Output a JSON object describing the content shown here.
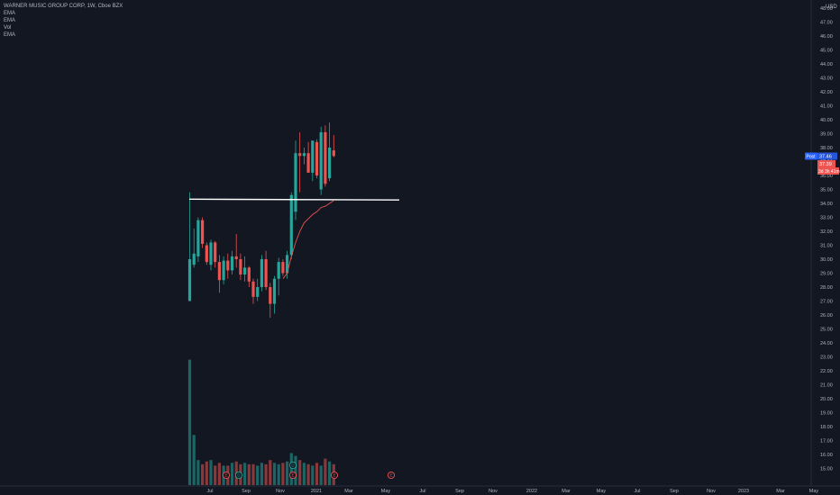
{
  "header": {
    "symbol_line": "WARNER MUSIC GROUP CORP, 1W, Cboe BZX",
    "indicators": [
      "EMA",
      "EMA",
      "Vol",
      "EMA"
    ]
  },
  "price_axis": {
    "currency": "USD",
    "ticks": [
      "48.00",
      "47.00",
      "46.00",
      "45.00",
      "44.00",
      "43.00",
      "42.00",
      "41.00",
      "40.00",
      "39.00",
      "38.00",
      "37.00",
      "36.00",
      "35.00",
      "34.00",
      "33.00",
      "32.00",
      "31.00",
      "30.00",
      "29.00",
      "28.00",
      "27.00",
      "26.00",
      "25.00",
      "24.00",
      "23.00",
      "22.00",
      "21.00",
      "20.00",
      "19.00",
      "18.00",
      "17.00",
      "16.00",
      "15.00"
    ],
    "tick_values": [
      48,
      47,
      46,
      45,
      44,
      43,
      42,
      41,
      40,
      39,
      38,
      37,
      36,
      35,
      34,
      33,
      32,
      31,
      30,
      29,
      28,
      27,
      26,
      25,
      24,
      23,
      22,
      21,
      20,
      19,
      18,
      17,
      16,
      15
    ],
    "current_label": "Post",
    "current_value": "37.46",
    "tag_price": "37.39",
    "tag_countdown": "3d 3h 41m"
  },
  "time_axis": {
    "labels": [
      "Jul",
      "Sep",
      "Nov",
      "2021",
      "Mar",
      "May",
      "Jul",
      "Sep",
      "Nov",
      "2022",
      "Mar",
      "May",
      "Jul",
      "Sep",
      "Nov",
      "2023",
      "Mar",
      "May"
    ]
  },
  "colors": {
    "background": "#131722",
    "up": "#26a69a",
    "down": "#ef5350",
    "ema": "#ef5350",
    "level_line": "#ffffff",
    "post_tag": "#2962ff",
    "price_tag": "#ef5350",
    "event_earnings": "#ef5350",
    "event_dividend": "#26a69a"
  },
  "events": [
    {
      "symbol": "E",
      "type": "earnings"
    },
    {
      "symbol": "D",
      "type": "dividend"
    },
    {
      "symbol": "D",
      "type": "dividend"
    },
    {
      "symbol": "E",
      "type": "earnings"
    },
    {
      "symbol": "E",
      "type": "earnings"
    },
    {
      "symbol": "E",
      "type": "earnings"
    }
  ],
  "chart_data": {
    "type": "candlestick",
    "title": "WARNER MUSIC GROUP CORP, 1W, Cboe BZX",
    "interval": "1W",
    "ylim": [
      15,
      48.5
    ],
    "candles": [
      {
        "o": 27.0,
        "h": 34.8,
        "l": 27.0,
        "c": 30.0
      },
      {
        "o": 29.6,
        "h": 32.2,
        "l": 29.4,
        "c": 30.4
      },
      {
        "o": 30.2,
        "h": 33.0,
        "l": 29.8,
        "c": 32.8
      },
      {
        "o": 32.8,
        "h": 33.0,
        "l": 30.8,
        "c": 31.1
      },
      {
        "o": 31.0,
        "h": 31.2,
        "l": 29.6,
        "c": 29.8
      },
      {
        "o": 29.6,
        "h": 31.4,
        "l": 29.2,
        "c": 31.2
      },
      {
        "o": 31.2,
        "h": 31.3,
        "l": 29.4,
        "c": 29.8
      },
      {
        "o": 29.8,
        "h": 30.3,
        "l": 27.6,
        "c": 28.5
      },
      {
        "o": 28.5,
        "h": 30.2,
        "l": 28.2,
        "c": 29.9
      },
      {
        "o": 29.9,
        "h": 30.4,
        "l": 28.6,
        "c": 29.2
      },
      {
        "o": 29.2,
        "h": 30.6,
        "l": 28.9,
        "c": 30.2
      },
      {
        "o": 30.2,
        "h": 31.8,
        "l": 29.4,
        "c": 30.0
      },
      {
        "o": 30.0,
        "h": 30.4,
        "l": 28.5,
        "c": 28.9
      },
      {
        "o": 28.9,
        "h": 30.2,
        "l": 28.4,
        "c": 29.4
      },
      {
        "o": 29.4,
        "h": 29.5,
        "l": 28.0,
        "c": 28.4
      },
      {
        "o": 28.4,
        "h": 28.6,
        "l": 26.8,
        "c": 27.3
      },
      {
        "o": 27.3,
        "h": 28.6,
        "l": 27.0,
        "c": 28.0
      },
      {
        "o": 28.0,
        "h": 30.3,
        "l": 27.7,
        "c": 30.0
      },
      {
        "o": 30.0,
        "h": 30.6,
        "l": 27.8,
        "c": 28.0
      },
      {
        "o": 28.0,
        "h": 28.3,
        "l": 25.8,
        "c": 26.8
      },
      {
        "o": 26.8,
        "h": 28.8,
        "l": 26.1,
        "c": 28.6
      },
      {
        "o": 28.6,
        "h": 30.1,
        "l": 27.4,
        "c": 29.8
      },
      {
        "o": 29.8,
        "h": 30.0,
        "l": 28.8,
        "c": 29.0
      },
      {
        "o": 29.0,
        "h": 30.6,
        "l": 28.6,
        "c": 30.3
      },
      {
        "o": 30.3,
        "h": 34.8,
        "l": 30.0,
        "c": 34.6
      },
      {
        "o": 33.4,
        "h": 38.5,
        "l": 32.8,
        "c": 37.6
      },
      {
        "o": 37.6,
        "h": 39.1,
        "l": 34.8,
        "c": 37.4
      },
      {
        "o": 37.4,
        "h": 38.0,
        "l": 36.8,
        "c": 37.6
      },
      {
        "o": 37.6,
        "h": 38.4,
        "l": 36.2,
        "c": 36.2
      },
      {
        "o": 36.2,
        "h": 38.5,
        "l": 35.6,
        "c": 38.5
      },
      {
        "o": 38.4,
        "h": 38.6,
        "l": 35.8,
        "c": 36.0
      },
      {
        "o": 35.0,
        "h": 39.5,
        "l": 34.6,
        "c": 39.1
      },
      {
        "o": 39.1,
        "h": 39.6,
        "l": 35.2,
        "c": 35.4
      },
      {
        "o": 35.8,
        "h": 39.8,
        "l": 35.6,
        "c": 38.0
      },
      {
        "o": 37.8,
        "h": 38.9,
        "l": 37.3,
        "c": 37.4
      }
    ],
    "volume": [
      22.8,
      17.4,
      15.6,
      15.3,
      15.5,
      15.6,
      15.2,
      15.4,
      15.2,
      15.2,
      15.4,
      15.5,
      15.3,
      15.4,
      15.3,
      15.3,
      15.2,
      15.4,
      15.3,
      15.6,
      15.4,
      15.3,
      15.4,
      15.5,
      16.1,
      15.9,
      15.6,
      15.4,
      15.3,
      15.2,
      15.4,
      15.2,
      15.7,
      15.5,
      15.3
    ],
    "level_line": {
      "value": 34.3
    },
    "ema": [
      null,
      null,
      null,
      null,
      null,
      null,
      null,
      null,
      null,
      null,
      null,
      null,
      null,
      null,
      null,
      null,
      null,
      null,
      null,
      null,
      null,
      null,
      28.6,
      29.0,
      30.2,
      31.2,
      32.0,
      32.6,
      32.9,
      33.2,
      33.4,
      33.7,
      33.8,
      34.0,
      34.2
    ]
  }
}
